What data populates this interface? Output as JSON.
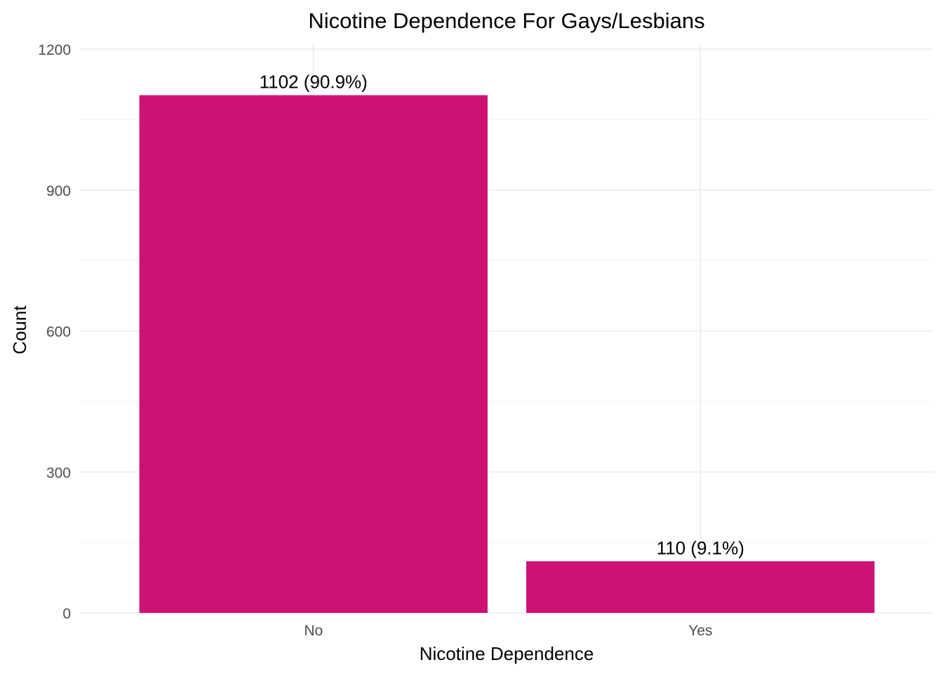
{
  "chart_data": {
    "type": "bar",
    "title": "Nicotine Dependence For Gays/Lesbians",
    "xlabel": "Nicotine Dependence",
    "ylabel": "Count",
    "categories": [
      "No",
      "Yes"
    ],
    "values": [
      1102,
      110
    ],
    "data_labels": [
      "1102 (90.9%)",
      "110 (9.1%)"
    ],
    "ylim": [
      0,
      1200
    ],
    "yticks": [
      0,
      300,
      600,
      900,
      1200
    ],
    "ytick_labels": [
      "0",
      "300",
      "600",
      "900",
      "1200"
    ],
    "grid": true,
    "legend": "none",
    "bar_color": "#CD1273"
  }
}
